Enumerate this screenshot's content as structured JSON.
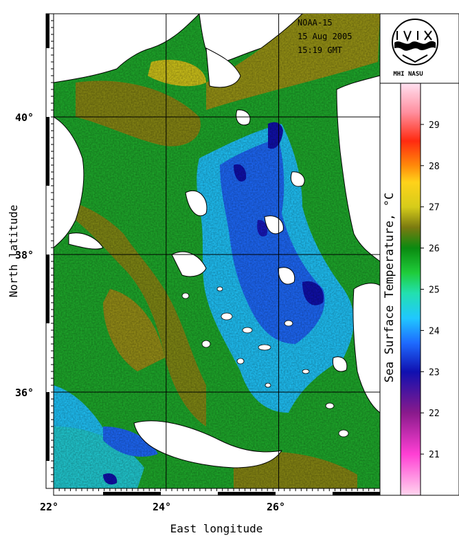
{
  "header": {
    "satellite": "NOAA-15",
    "date": "15 Aug 2005",
    "time": "15:19 GMT"
  },
  "logo": {
    "label": "MHI NASU",
    "icon": "mhi-wave-emblem-icon"
  },
  "axes": {
    "xlabel": "East longitude",
    "ylabel": "North latitude",
    "x_ticks": [
      "22°",
      "24°",
      "26°"
    ],
    "y_ticks": [
      "40°",
      "38°",
      "36°"
    ],
    "lon_range": [
      22,
      27.8
    ],
    "lat_range": [
      34.6,
      41.5
    ]
  },
  "colorbar": {
    "title": "Sea Surface Temperature, °C",
    "tick_labels": [
      "21",
      "22",
      "23",
      "24",
      "25",
      "26",
      "27",
      "28",
      "29"
    ],
    "range": [
      20,
      30
    ],
    "stops": [
      {
        "t": 20,
        "c": "#ffd6ee"
      },
      {
        "t": 21,
        "c": "#ff3fd4"
      },
      {
        "t": 22,
        "c": "#8a1a8c"
      },
      {
        "t": 23,
        "c": "#1010b0"
      },
      {
        "t": 23.7,
        "c": "#1e6bff"
      },
      {
        "t": 24.3,
        "c": "#20c8ff"
      },
      {
        "t": 24.9,
        "c": "#22e0b0"
      },
      {
        "t": 25.4,
        "c": "#1fcc3a"
      },
      {
        "t": 26,
        "c": "#0a8a10"
      },
      {
        "t": 26.5,
        "c": "#7a7a10"
      },
      {
        "t": 27,
        "c": "#d6cc1a"
      },
      {
        "t": 27.6,
        "c": "#ffd21a"
      },
      {
        "t": 28,
        "c": "#ff8a0a"
      },
      {
        "t": 28.6,
        "c": "#ff2a10"
      },
      {
        "t": 29.3,
        "c": "#ff90a0"
      },
      {
        "t": 30,
        "c": "#ffe0f0"
      }
    ]
  },
  "colors": {
    "land": "#ffffff",
    "coast": "#000000",
    "grid": "#000000",
    "sea_cool": "#1e6bff",
    "sea_warm": "#7a7a10"
  }
}
